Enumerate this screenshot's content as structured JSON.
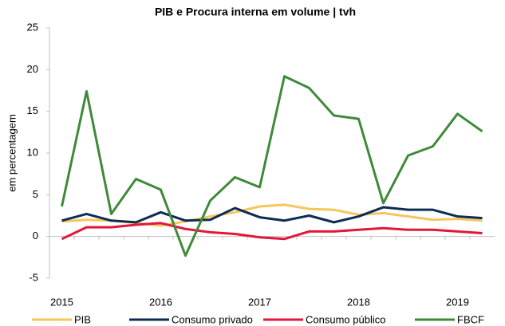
{
  "chart_data": {
    "type": "line",
    "title": "PIB e Procura interna em volume | tvh",
    "y_label": "em percentagem",
    "categories": [
      "2015",
      null,
      null,
      null,
      "2016",
      null,
      null,
      null,
      "2017",
      null,
      null,
      null,
      "2018",
      null,
      null,
      null,
      "2019",
      null
    ],
    "series": [
      {
        "name": "PIB",
        "color": "#f5c65b",
        "values": [
          1.8,
          2.0,
          1.9,
          1.6,
          1.3,
          1.8,
          2.4,
          2.9,
          3.6,
          3.8,
          3.3,
          3.2,
          2.6,
          2.8,
          2.4,
          2.0,
          2.1,
          1.9
        ]
      },
      {
        "name": "Consumo privado",
        "color": "#0d2c54",
        "values": [
          1.9,
          2.7,
          1.9,
          1.7,
          2.9,
          1.9,
          2.0,
          3.4,
          2.3,
          1.9,
          2.5,
          1.7,
          2.4,
          3.5,
          3.2,
          3.2,
          2.4,
          2.2
        ]
      },
      {
        "name": "Consumo público",
        "color": "#e3173c",
        "values": [
          -0.3,
          1.1,
          1.1,
          1.4,
          1.6,
          0.9,
          0.5,
          0.3,
          -0.1,
          -0.3,
          0.6,
          0.6,
          0.8,
          1.0,
          0.8,
          0.8,
          0.6,
          0.4
        ]
      },
      {
        "name": "FBCF",
        "color": "#3f8a38",
        "values": [
          3.6,
          17.4,
          2.7,
          6.9,
          5.6,
          -2.3,
          4.3,
          7.1,
          5.9,
          19.2,
          17.8,
          14.5,
          14.1,
          4.0,
          9.7,
          10.8,
          14.7,
          12.6
        ]
      }
    ],
    "ylim": [
      -5,
      25
    ],
    "yticks": [
      -5,
      0,
      5,
      10,
      15,
      20,
      25
    ],
    "legend": "bottom"
  }
}
